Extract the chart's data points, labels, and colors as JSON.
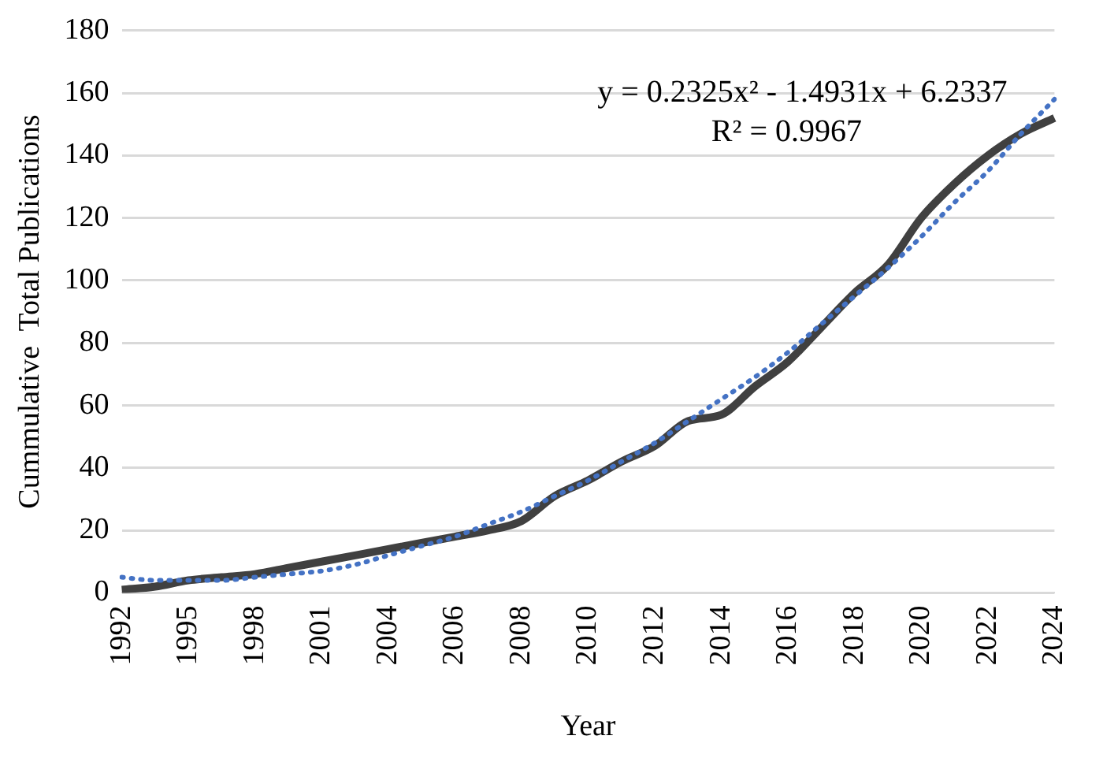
{
  "chart_data": {
    "type": "line",
    "xlabel": "Year",
    "ylabel": "Cummulative  Total Publications",
    "categories": [
      "1992",
      null,
      "1995",
      null,
      "1998",
      null,
      "2001",
      null,
      "2004",
      null,
      "2006",
      null,
      "2008",
      null,
      "2010",
      null,
      "2012",
      null,
      "2014",
      null,
      "2016",
      null,
      "2018",
      null,
      "2020",
      null,
      "2022",
      null,
      "2024"
    ],
    "series": [
      {
        "color": "#404040",
        "line_style": "solid",
        "values": [
          1,
          2,
          4,
          5,
          6,
          8,
          10,
          12,
          14,
          16,
          18,
          20,
          23,
          31,
          36,
          42,
          47,
          55,
          57,
          66,
          74,
          85,
          96,
          105,
          120,
          131,
          140,
          147,
          152
        ]
      },
      {
        "type": "line",
        "color": "#4472c4",
        "line_style": "dotted",
        "values": [
          5,
          4,
          4,
          4,
          5,
          6,
          7,
          9,
          12,
          15,
          18,
          22,
          26,
          31,
          36,
          42,
          48,
          55,
          62,
          69,
          77,
          86,
          95,
          104,
          114,
          125,
          135,
          147,
          158
        ]
      }
    ],
    "ylim": [
      0,
      180
    ],
    "yticks": [
      0,
      20,
      40,
      60,
      80,
      100,
      120,
      140,
      160,
      180
    ],
    "grid": "y",
    "legend": false,
    "marker": "none",
    "annotations": [
      "y = 0.2325x² - 1.4931x + 6.2337",
      "R² = 0.9967"
    ]
  }
}
